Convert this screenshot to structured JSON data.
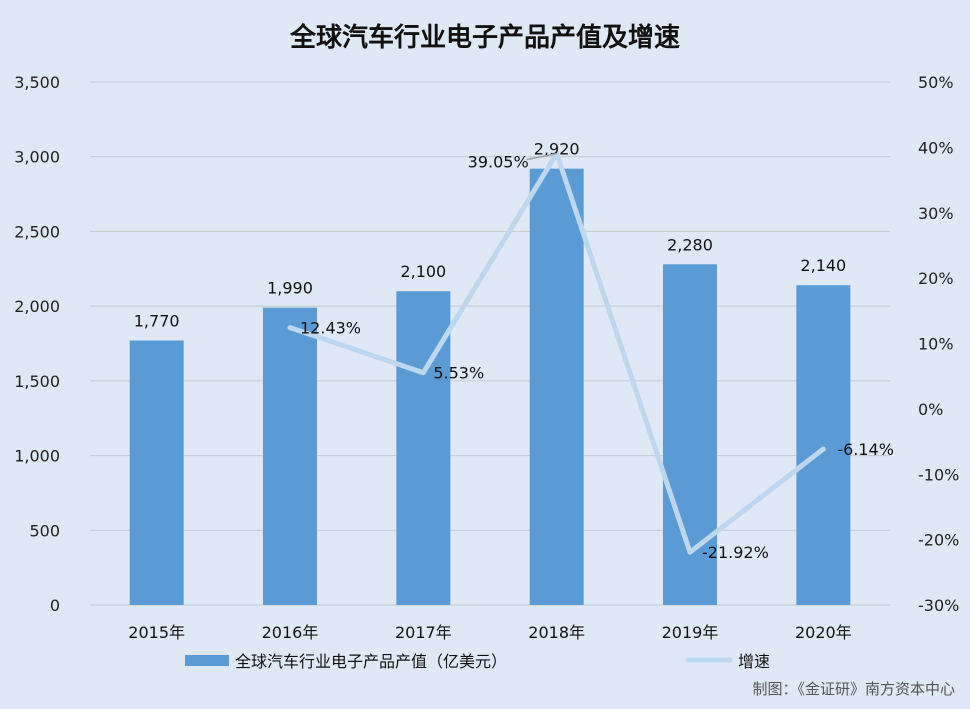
{
  "chart_data": {
    "type": "bar",
    "title": "全球汽车行业电子产品产值及增速",
    "categories": [
      "2015年",
      "2016年",
      "2017年",
      "2018年",
      "2019年",
      "2020年"
    ],
    "series": [
      {
        "name": "全球汽车行业电子产品产值（亿美元）",
        "type": "bar",
        "axis": "left",
        "values": [
          1770,
          1990,
          2100,
          2920,
          2280,
          2140
        ],
        "labels": [
          "1,770",
          "1,990",
          "2,100",
          "2,920",
          "2,280",
          "2,140"
        ],
        "color": "#5b9bd5"
      },
      {
        "name": "增速",
        "type": "line",
        "axis": "right",
        "values": [
          null,
          12.43,
          5.53,
          39.05,
          -21.92,
          -6.14
        ],
        "labels": [
          "",
          "12.43%",
          "5.53%",
          "39.05%",
          "-21.92%",
          "-6.14%"
        ],
        "color": "#bdd7ee"
      }
    ],
    "y_left": {
      "range": [
        0,
        3500
      ],
      "ticks": [
        0,
        500,
        1000,
        1500,
        2000,
        2500,
        3000,
        3500
      ],
      "tick_labels": [
        "0",
        "500",
        "1,000",
        "1,500",
        "2,000",
        "2,500",
        "3,000",
        "3,500"
      ]
    },
    "y_right": {
      "range": [
        -30,
        50
      ],
      "ticks": [
        -30,
        -20,
        -10,
        0,
        10,
        20,
        30,
        40,
        50
      ],
      "tick_labels": [
        "-30%",
        "-20%",
        "-10%",
        "0%",
        "10%",
        "20%",
        "30%",
        "40%",
        "50%"
      ]
    },
    "grid": true,
    "legend_position": "bottom",
    "source_note": "制图：《金证研》南方资本中心"
  }
}
